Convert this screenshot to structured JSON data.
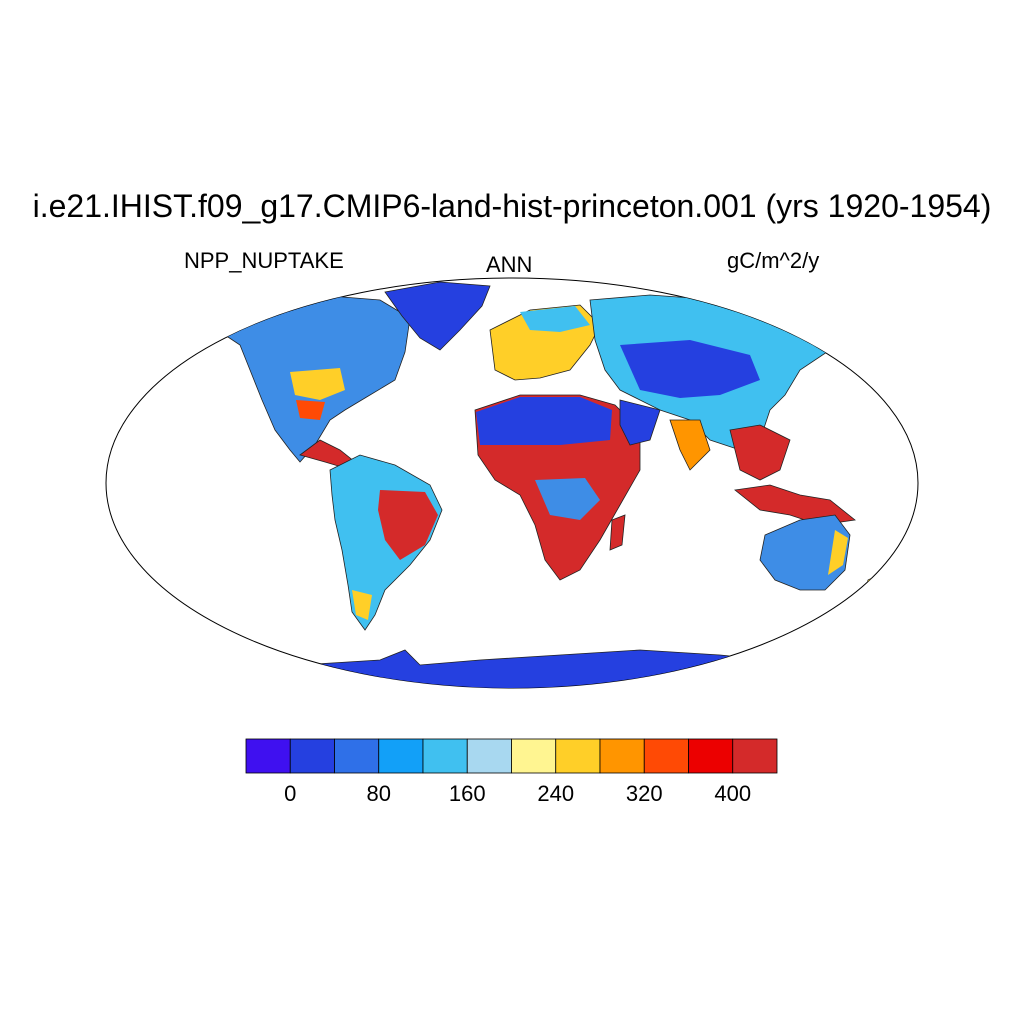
{
  "title": "i.e21.IHIST.f09_g17.CMIP6-land-hist-princeton.001 (yrs 1920-1954)",
  "left_label": "NPP_NUPTAKE",
  "center_label": "ANN",
  "right_label": "gC/m^2/y",
  "colorbar": {
    "colors": [
      "#3f10f0",
      "#2540e0",
      "#2f70e8",
      "#12a0f8",
      "#40c0f0",
      "#a8d8f0",
      "#fff591",
      "#ffcf28",
      "#ff9500",
      "#ff4a05",
      "#ec0000",
      "#d42a2a"
    ],
    "tick_labels": [
      "0",
      "80",
      "160",
      "240",
      "320",
      "400"
    ]
  }
}
